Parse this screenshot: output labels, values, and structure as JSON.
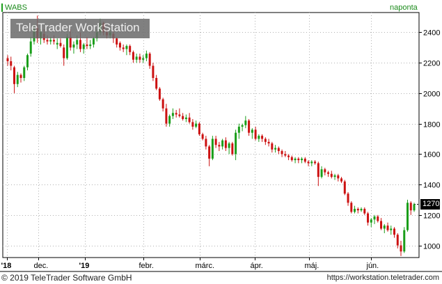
{
  "header": {
    "symbol": "WABS",
    "interval": "naponta"
  },
  "watermark": "TeleTrader WorkStation",
  "footer": {
    "copyright": "© 2019 TeleTrader Software GmbH",
    "url": "https://workstation.teletrader.com"
  },
  "colors": {
    "up": "#1a9e1a",
    "down": "#cc1111",
    "grid": "#b0b0b0",
    "accent": "#1a8a1a",
    "label_bg": "#000000"
  },
  "chart_data": {
    "type": "candlestick",
    "x_tick_labels": [
      "'18",
      "dec.",
      "'19",
      "febr.",
      "márc.",
      "ápr.",
      "máj.",
      "jún."
    ],
    "y_ticks": [
      1000,
      1200,
      1400,
      1600,
      1800,
      2000,
      2200,
      2400
    ],
    "ylim": [
      920,
      2530
    ],
    "last_price": 1270,
    "grid": true,
    "candles": [
      [
        2230,
        2250,
        2180,
        2210
      ],
      [
        2210,
        2240,
        2150,
        2180
      ],
      [
        2170,
        2180,
        2000,
        2060
      ],
      [
        2060,
        2140,
        2040,
        2120
      ],
      [
        2120,
        2130,
        2070,
        2100
      ],
      [
        2100,
        2180,
        2080,
        2170
      ],
      [
        2170,
        2260,
        2150,
        2250
      ],
      [
        2260,
        2370,
        2240,
        2340
      ],
      [
        2340,
        2450,
        2320,
        2420
      ],
      [
        2430,
        2510,
        2330,
        2360
      ],
      [
        2360,
        2420,
        2320,
        2400
      ],
      [
        2390,
        2420,
        2330,
        2350
      ],
      [
        2350,
        2380,
        2320,
        2340
      ],
      [
        2340,
        2370,
        2320,
        2350
      ],
      [
        2350,
        2380,
        2320,
        2340
      ],
      [
        2320,
        2360,
        2290,
        2330
      ],
      [
        2330,
        2360,
        2300,
        2310
      ],
      [
        2300,
        2320,
        2180,
        2230
      ],
      [
        2230,
        2390,
        2220,
        2370
      ],
      [
        2370,
        2420,
        2280,
        2300
      ],
      [
        2300,
        2340,
        2260,
        2320
      ],
      [
        2320,
        2380,
        2290,
        2350
      ],
      [
        2350,
        2400,
        2270,
        2290
      ],
      [
        2290,
        2330,
        2260,
        2320
      ],
      [
        2320,
        2370,
        2290,
        2310
      ],
      [
        2310,
        2350,
        2290,
        2320
      ],
      [
        2320,
        2370,
        2300,
        2360
      ],
      [
        2360,
        2420,
        2340,
        2400
      ],
      [
        2400,
        2490,
        2380,
        2460
      ],
      [
        2460,
        2470,
        2380,
        2400
      ],
      [
        2400,
        2420,
        2360,
        2380
      ],
      [
        2380,
        2420,
        2360,
        2400
      ],
      [
        2390,
        2410,
        2330,
        2360
      ],
      [
        2360,
        2370,
        2300,
        2320
      ],
      [
        2330,
        2340,
        2280,
        2300
      ],
      [
        2300,
        2320,
        2270,
        2290
      ],
      [
        2290,
        2320,
        2250,
        2310
      ],
      [
        2310,
        2320,
        2250,
        2270
      ],
      [
        2270,
        2280,
        2200,
        2220
      ],
      [
        2220,
        2260,
        2200,
        2240
      ],
      [
        2240,
        2260,
        2200,
        2220
      ],
      [
        2220,
        2250,
        2200,
        2230
      ],
      [
        2230,
        2280,
        2210,
        2260
      ],
      [
        2260,
        2270,
        2160,
        2180
      ],
      [
        2180,
        2200,
        2080,
        2100
      ],
      [
        2100,
        2120,
        2020,
        2030
      ],
      [
        2030,
        2040,
        1950,
        1960
      ],
      [
        1960,
        1970,
        1880,
        1900
      ],
      [
        1900,
        1930,
        1780,
        1800
      ],
      [
        1800,
        1860,
        1780,
        1850
      ],
      [
        1850,
        1900,
        1830,
        1870
      ],
      [
        1870,
        1890,
        1840,
        1860
      ],
      [
        1860,
        1900,
        1840,
        1850
      ],
      [
        1850,
        1870,
        1820,
        1830
      ],
      [
        1830,
        1860,
        1810,
        1840
      ],
      [
        1840,
        1870,
        1800,
        1810
      ],
      [
        1810,
        1830,
        1760,
        1780
      ],
      [
        1780,
        1820,
        1770,
        1800
      ],
      [
        1800,
        1810,
        1720,
        1730
      ],
      [
        1730,
        1740,
        1690,
        1700
      ],
      [
        1700,
        1720,
        1630,
        1650
      ],
      [
        1650,
        1660,
        1520,
        1570
      ],
      [
        1570,
        1720,
        1560,
        1700
      ],
      [
        1700,
        1720,
        1640,
        1660
      ],
      [
        1660,
        1680,
        1620,
        1650
      ],
      [
        1650,
        1700,
        1630,
        1690
      ],
      [
        1690,
        1710,
        1620,
        1640
      ],
      [
        1640,
        1680,
        1600,
        1670
      ],
      [
        1670,
        1680,
        1590,
        1600
      ],
      [
        1600,
        1760,
        1560,
        1740
      ],
      [
        1740,
        1800,
        1700,
        1780
      ],
      [
        1780,
        1800,
        1750,
        1790
      ],
      [
        1790,
        1850,
        1770,
        1820
      ],
      [
        1820,
        1830,
        1720,
        1740
      ],
      [
        1740,
        1770,
        1700,
        1760
      ],
      [
        1760,
        1780,
        1690,
        1700
      ],
      [
        1700,
        1730,
        1680,
        1720
      ],
      [
        1720,
        1730,
        1680,
        1700
      ],
      [
        1700,
        1710,
        1660,
        1680
      ],
      [
        1680,
        1700,
        1650,
        1670
      ],
      [
        1670,
        1680,
        1610,
        1630
      ],
      [
        1630,
        1660,
        1610,
        1640
      ],
      [
        1640,
        1650,
        1600,
        1620
      ],
      [
        1620,
        1630,
        1580,
        1600
      ],
      [
        1600,
        1620,
        1580,
        1590
      ],
      [
        1590,
        1600,
        1560,
        1580
      ],
      [
        1580,
        1590,
        1550,
        1560
      ],
      [
        1560,
        1580,
        1540,
        1570
      ],
      [
        1570,
        1580,
        1540,
        1560
      ],
      [
        1560,
        1580,
        1540,
        1570
      ],
      [
        1570,
        1580,
        1540,
        1550
      ],
      [
        1550,
        1560,
        1520,
        1540
      ],
      [
        1540,
        1560,
        1520,
        1550
      ],
      [
        1550,
        1560,
        1530,
        1540
      ],
      [
        1540,
        1550,
        1390,
        1450
      ],
      [
        1450,
        1520,
        1440,
        1500
      ],
      [
        1500,
        1510,
        1460,
        1480
      ],
      [
        1480,
        1490,
        1450,
        1470
      ],
      [
        1470,
        1490,
        1440,
        1450
      ],
      [
        1450,
        1470,
        1430,
        1460
      ],
      [
        1460,
        1470,
        1420,
        1440
      ],
      [
        1440,
        1450,
        1410,
        1420
      ],
      [
        1420,
        1430,
        1330,
        1340
      ],
      [
        1340,
        1350,
        1260,
        1280
      ],
      [
        1280,
        1290,
        1210,
        1220
      ],
      [
        1220,
        1260,
        1210,
        1240
      ],
      [
        1240,
        1250,
        1210,
        1230
      ],
      [
        1230,
        1250,
        1220,
        1240
      ],
      [
        1240,
        1250,
        1200,
        1210
      ],
      [
        1210,
        1220,
        1130,
        1150
      ],
      [
        1150,
        1180,
        1120,
        1170
      ],
      [
        1170,
        1200,
        1140,
        1190
      ],
      [
        1190,
        1200,
        1150,
        1160
      ],
      [
        1160,
        1180,
        1100,
        1110
      ],
      [
        1110,
        1140,
        1080,
        1130
      ],
      [
        1130,
        1150,
        1090,
        1100
      ],
      [
        1100,
        1130,
        1070,
        1110
      ],
      [
        1110,
        1120,
        1050,
        1070
      ],
      [
        1070,
        1080,
        980,
        1000
      ],
      [
        1000,
        1030,
        930,
        960
      ],
      [
        960,
        1120,
        950,
        1100
      ],
      [
        1100,
        1300,
        1090,
        1280
      ],
      [
        1280,
        1290,
        1200,
        1230
      ],
      [
        1230,
        1280,
        1220,
        1270
      ]
    ]
  }
}
